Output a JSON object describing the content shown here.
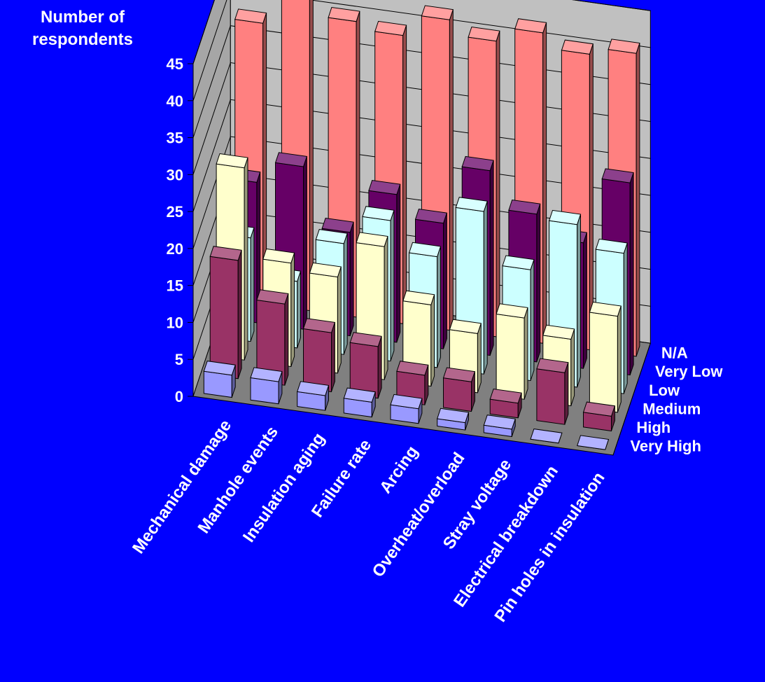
{
  "chart_data": {
    "type": "bar",
    "subtype": "3d-clustered-depth",
    "ylabel": "Number of respondents",
    "xlabel": "",
    "ylim": [
      0,
      45
    ],
    "yticks": [
      0,
      5,
      10,
      15,
      20,
      25,
      30,
      35,
      40,
      45
    ],
    "grid": true,
    "legend": "none",
    "categories": [
      "Mechanical damage",
      "Manhole events",
      "Insulation aging",
      "Failure rate",
      "Arcing",
      "Overheat/overload",
      "Stray voltage",
      "Electrical breakdown",
      "Pin holes in insulation"
    ],
    "series": [
      {
        "name": "Very High",
        "color": "#9999FF",
        "values": [
          3,
          3,
          2,
          2,
          2,
          1,
          1,
          0,
          0
        ]
      },
      {
        "name": "High",
        "color": "#993366",
        "values": [
          16,
          11,
          8,
          7,
          4,
          4,
          2,
          7,
          2
        ]
      },
      {
        "name": "Medium",
        "color": "#FFFFCC",
        "values": [
          26,
          14,
          13,
          18,
          11,
          8,
          11,
          9,
          13
        ]
      },
      {
        "name": "Low",
        "color": "#CCFFFF",
        "values": [
          14,
          9,
          15,
          19,
          15,
          22,
          15,
          22,
          19
        ]
      },
      {
        "name": "Very Low",
        "color": "#660066",
        "values": [
          19,
          22,
          14,
          20,
          17,
          25,
          20,
          17,
          26
        ]
      },
      {
        "name": "N/A",
        "color": "#FF8080",
        "values": [
          38,
          45,
          40,
          39,
          42,
          40,
          42,
          40,
          41
        ]
      }
    ]
  }
}
